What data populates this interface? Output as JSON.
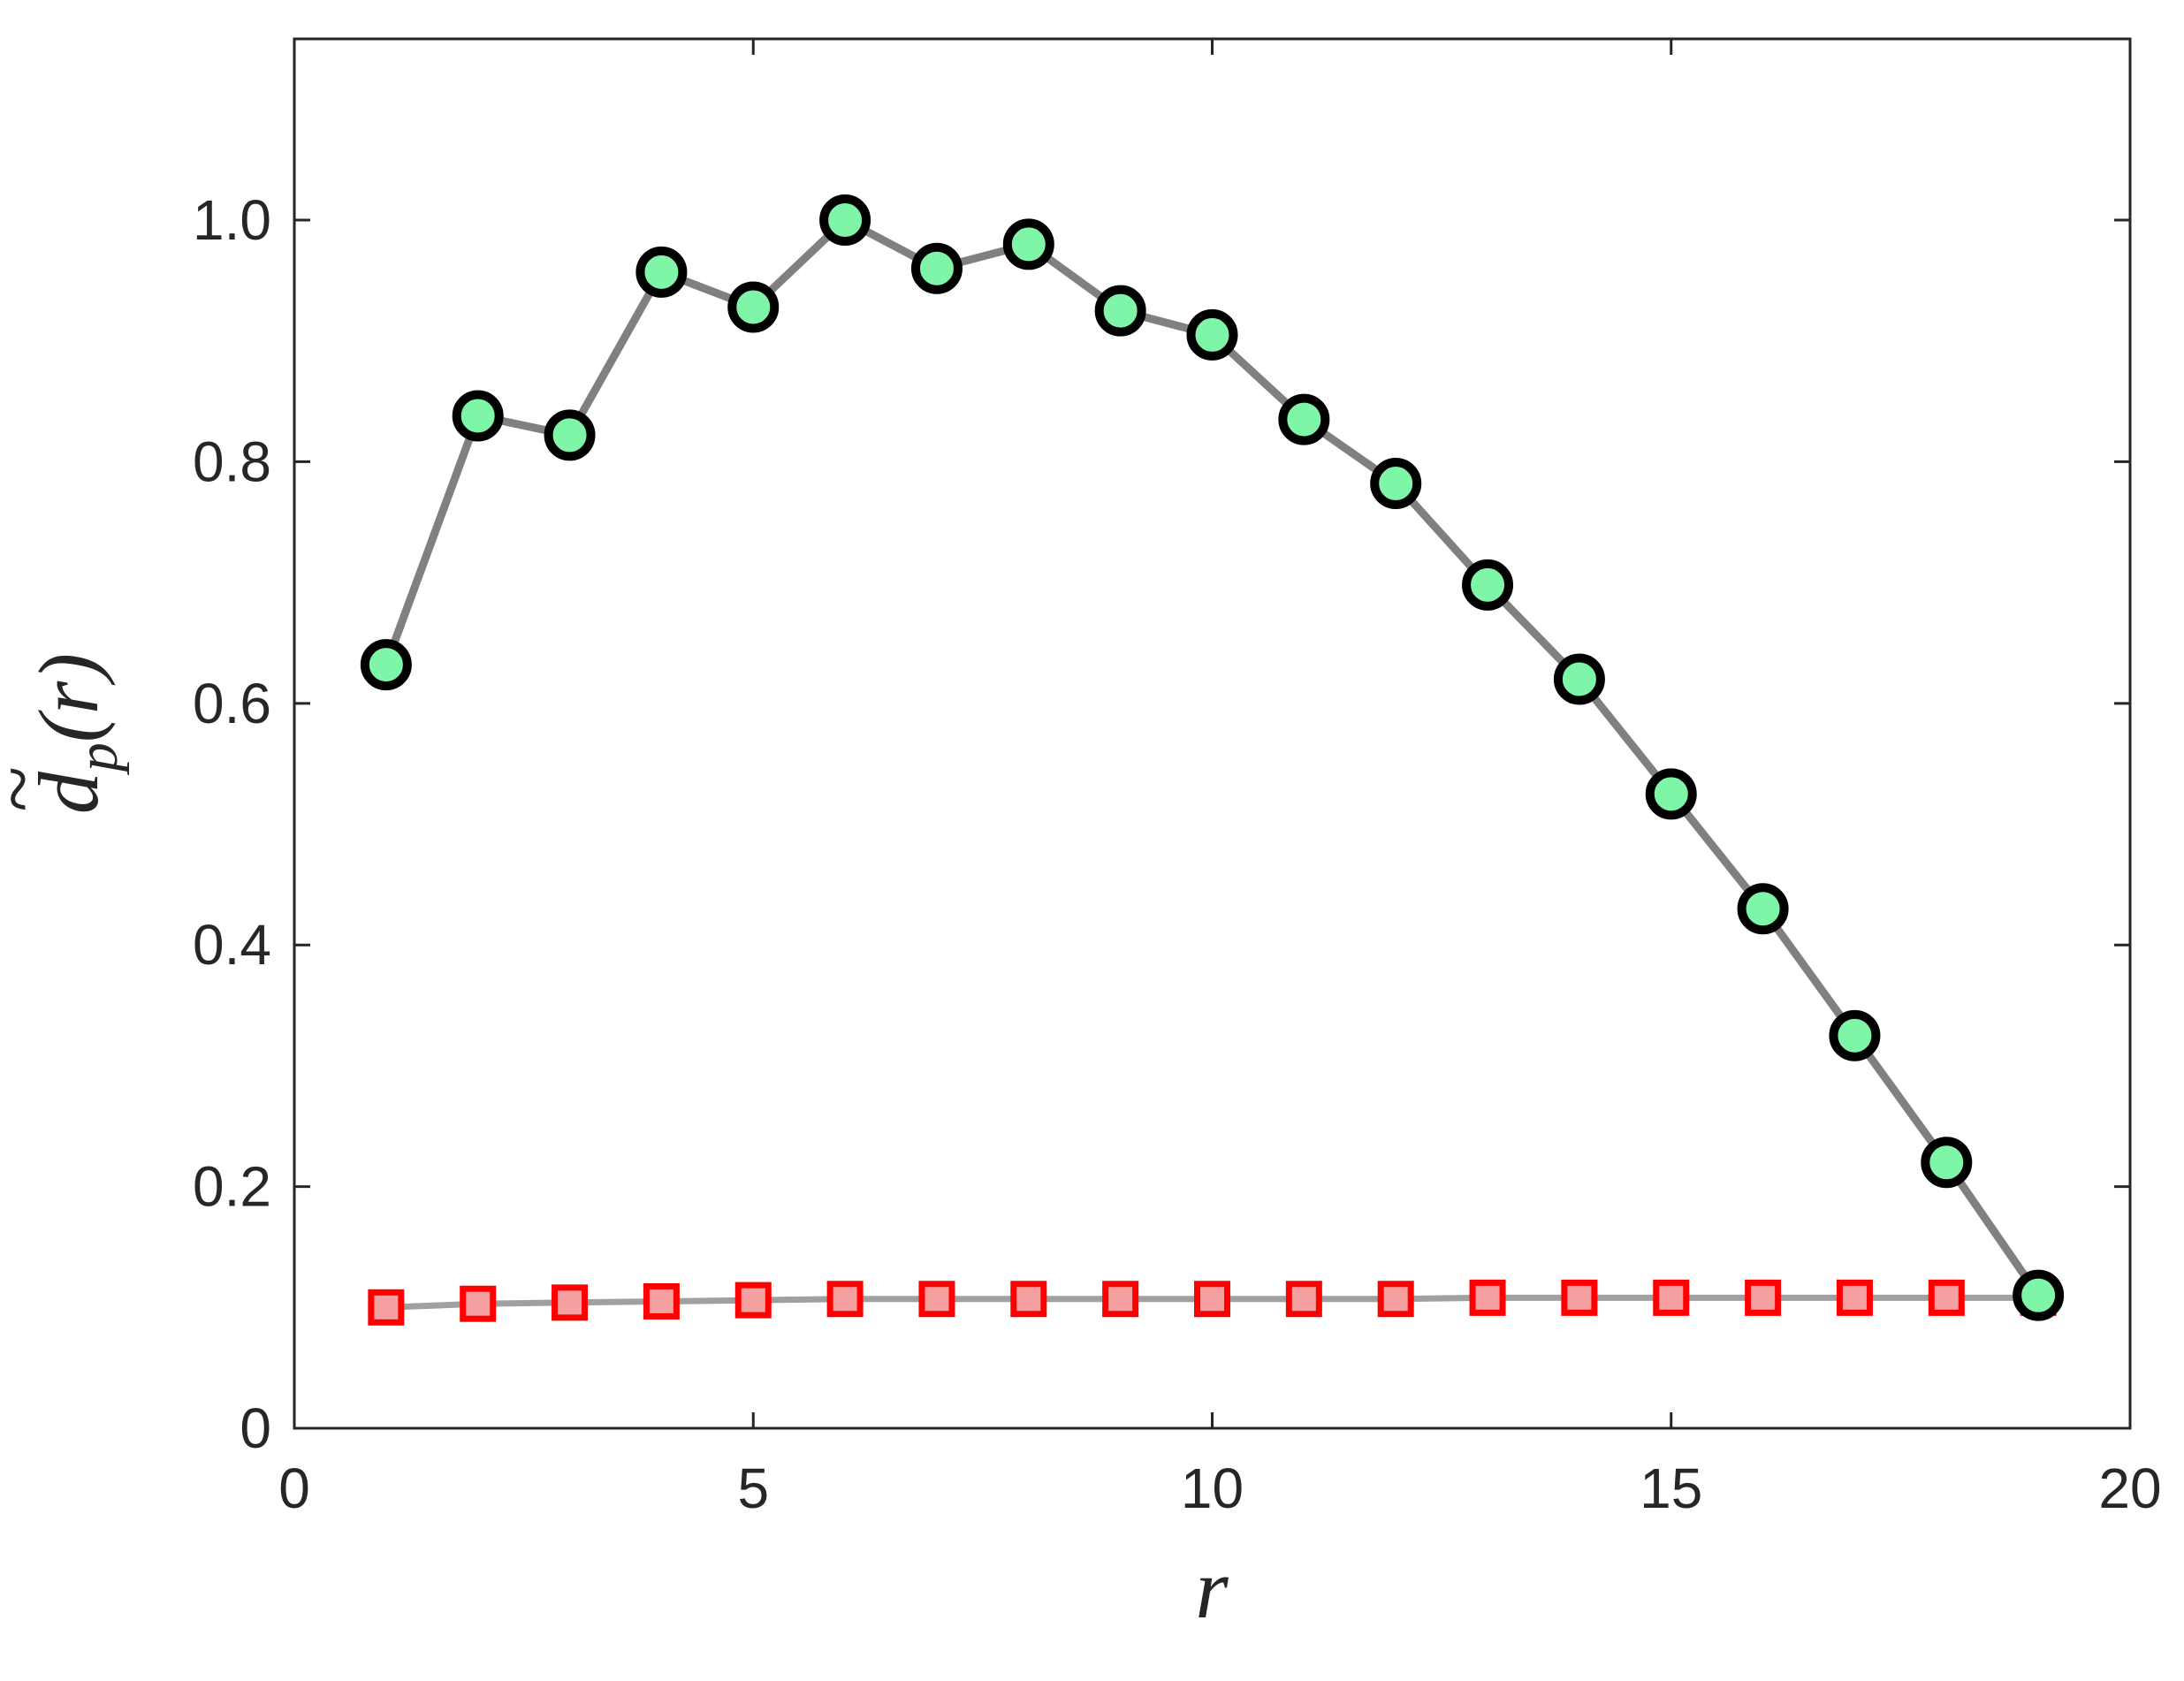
{
  "chart_data": {
    "type": "line",
    "xlabel": "r",
    "ylabel": {
      "base": "d",
      "accent": "~",
      "subscript": "p",
      "argument": "(r)"
    },
    "xlim": [
      0,
      20
    ],
    "ylim": [
      0,
      1.15
    ],
    "xticks": [
      0,
      5,
      10,
      15,
      20
    ],
    "xtick_labels": [
      "0",
      "5",
      "10",
      "15",
      "20"
    ],
    "yticks": [
      0,
      0.2,
      0.4,
      0.6,
      0.8,
      1.0
    ],
    "ytick_labels": [
      "0",
      "0.2",
      "0.4",
      "0.6",
      "0.8",
      "1.0"
    ],
    "grid": false,
    "x": [
      1,
      2,
      3,
      4,
      5,
      6,
      7,
      8,
      9,
      10,
      11,
      12,
      13,
      14,
      15,
      16,
      17,
      18,
      19
    ],
    "series": [
      {
        "marker": "circle",
        "values": [
          0.632,
          0.838,
          0.822,
          0.957,
          0.928,
          1.0,
          0.96,
          0.98,
          0.925,
          0.905,
          0.835,
          0.782,
          0.698,
          0.62,
          0.525,
          0.43,
          0.325,
          0.22,
          0.11
        ],
        "line_color": "#808080",
        "marker_fill": "#7ff5a8",
        "marker_edge": "#000000"
      },
      {
        "marker": "square",
        "values": [
          0.1,
          0.103,
          0.104,
          0.105,
          0.106,
          0.107,
          0.107,
          0.107,
          0.107,
          0.107,
          0.107,
          0.107,
          0.108,
          0.108,
          0.108,
          0.108,
          0.108,
          0.108,
          0.108
        ],
        "line_color": "#a0a0a0",
        "marker_fill": "#f4a0a0",
        "marker_edge": "#ff0000"
      }
    ]
  }
}
